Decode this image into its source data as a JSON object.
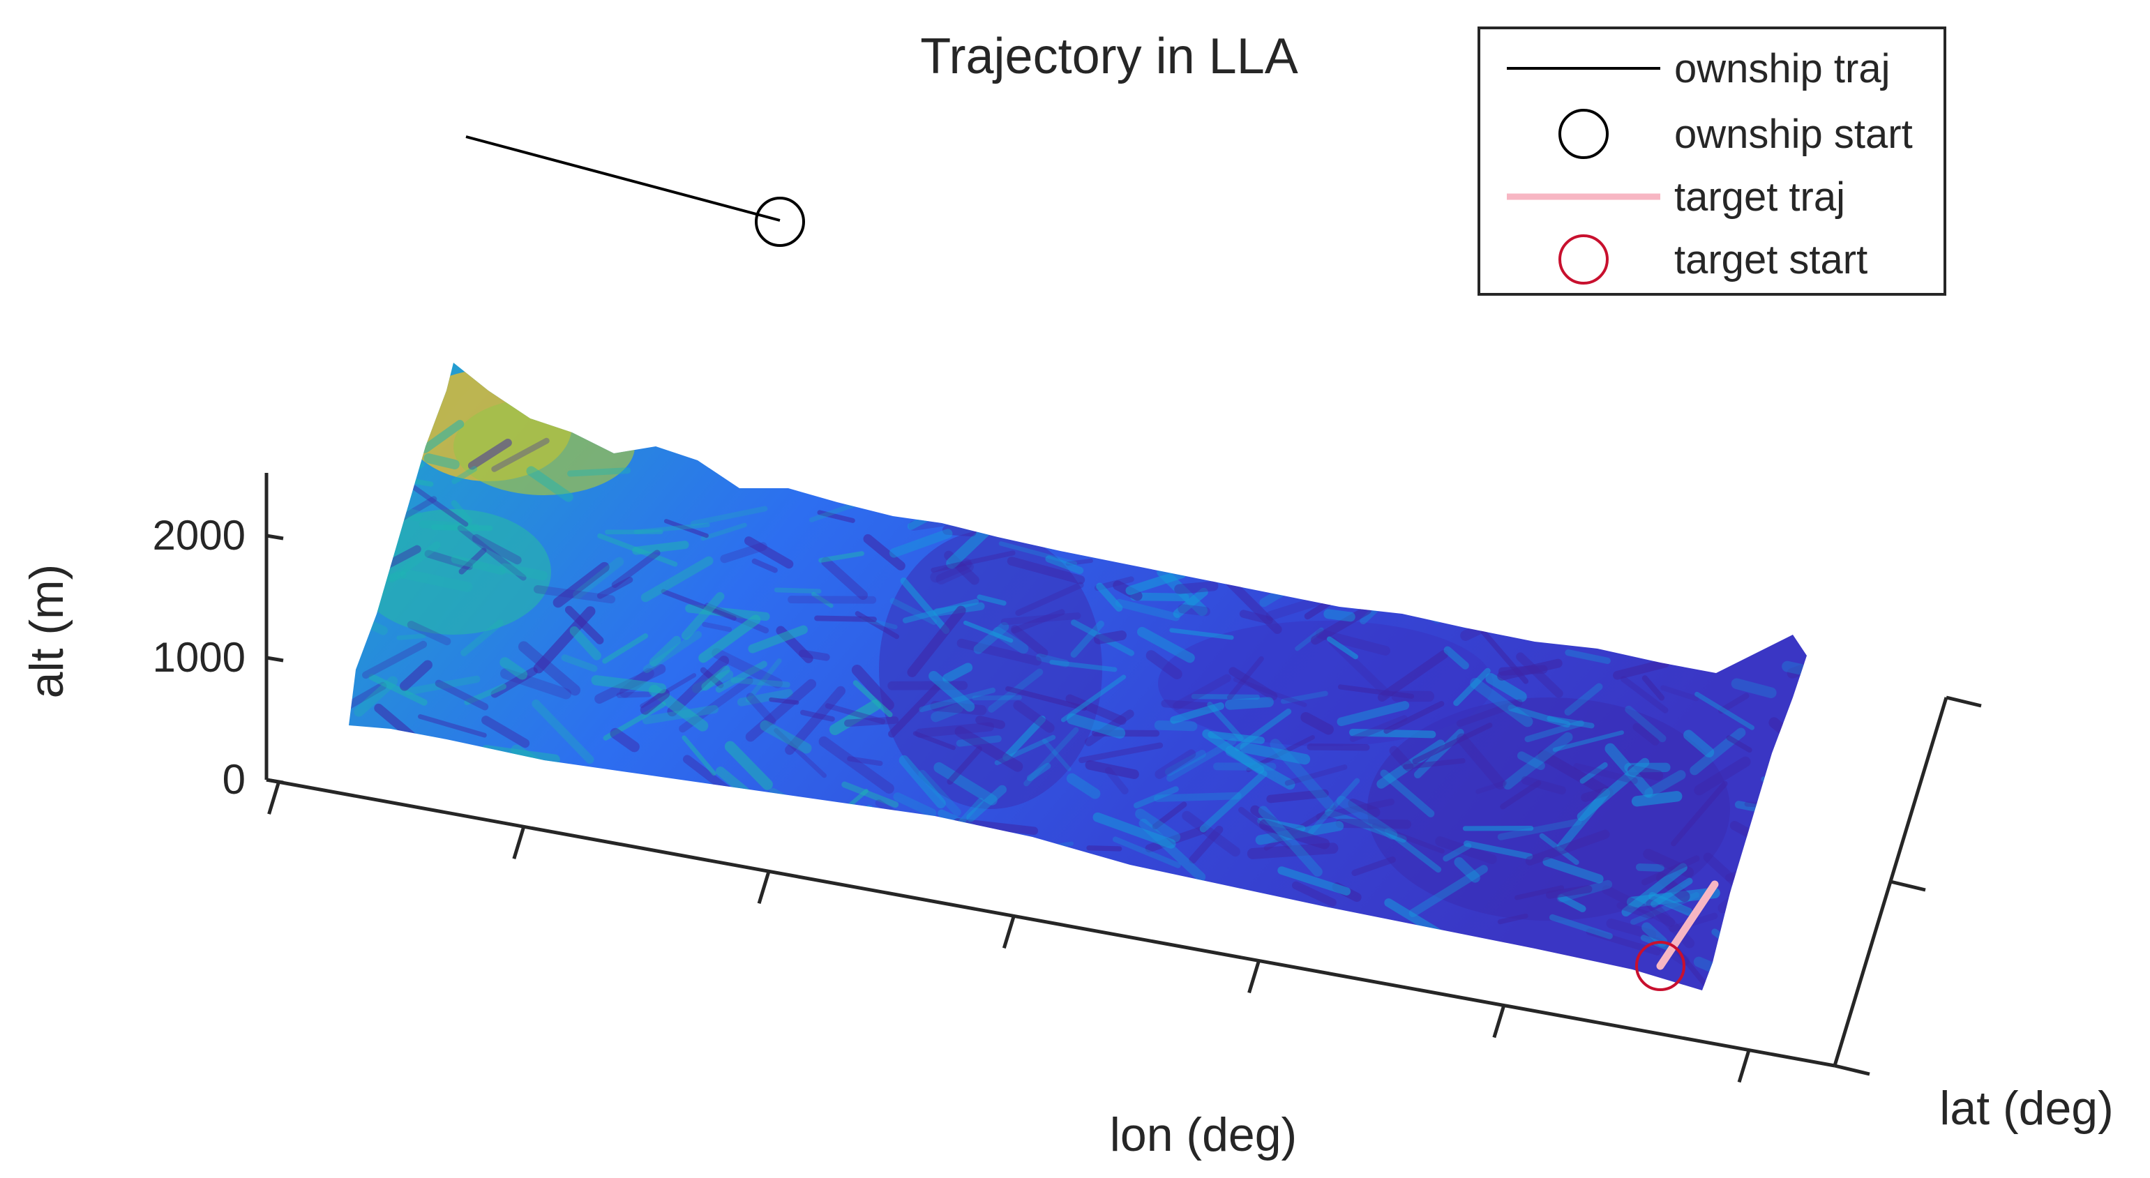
{
  "chart_data": {
    "type": "surface3d",
    "title": "Trajectory in LLA",
    "xlabel": "lon (deg)",
    "ylabel": "lat (deg)",
    "zlabel": "alt (m)",
    "zlim": [
      0,
      2500
    ],
    "z_ticks": [
      0,
      1000,
      2000
    ],
    "x_tick_labels_shown": false,
    "y_tick_labels_shown": false,
    "grid": false,
    "legend_position": "top-right",
    "colormap": "parula",
    "colormap_colors": [
      "#3e26a8",
      "#2c72f4",
      "#169cdc",
      "#1fb5b3",
      "#8dc24b",
      "#e8b839",
      "#f9fb15"
    ],
    "terrain_description_values": {
      "max_alt_m": 2400,
      "typical_alt_m": 900
    },
    "series": [
      {
        "name": "ownship traj",
        "style": "line",
        "color": "#000000"
      },
      {
        "name": "ownship start",
        "style": "circle-marker",
        "color": "#000000"
      },
      {
        "name": "target traj",
        "style": "line",
        "color": "#f7b6c3"
      },
      {
        "name": "target start",
        "style": "circle-marker",
        "color": "#c8102e"
      }
    ]
  }
}
